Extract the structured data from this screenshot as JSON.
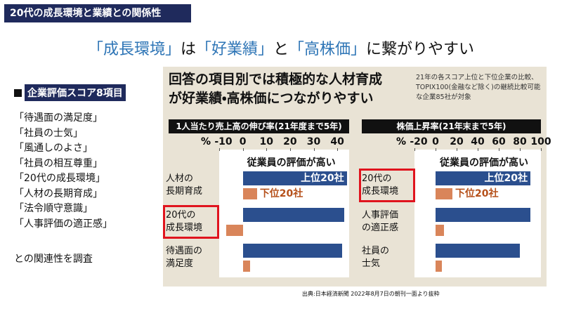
{
  "header": {
    "title": "20代の成長環境と業績との関係性"
  },
  "headline": [
    {
      "text": "「成長環境」",
      "color": "#2e75b6"
    },
    {
      "text": "は"
    },
    {
      "text": "「好業績」",
      "color": "#2e75b6"
    },
    {
      "text": "と"
    },
    {
      "text": "「高株価」",
      "color": "#2e75b6"
    },
    {
      "text": "に繋がりやすい"
    }
  ],
  "sidebar": {
    "heading": "企業評価スコア8項目",
    "items": [
      "「待遇面の満足度」",
      "「社員の士気」",
      "「風通しのよさ」",
      "「社員の相互尊重」",
      "「20代の成長環境」",
      "「人材の長期育成」",
      "「法令順守意識」",
      "「人事評価の適正感」"
    ],
    "footer": "との関連性を調査"
  },
  "panel": {
    "title_lines": [
      "回答の項目別では積極的な人材育成",
      "が好業績・高株価につながりやすい"
    ],
    "note": "21年の各スコア上位と下位企業の比較、TOPIX100(金融など除く)の継続比較可能な企業85社が対象"
  },
  "chart_data": [
    {
      "type": "bar",
      "orientation": "horizontal",
      "title": "1人当たり売上高の伸び率(21年度まで5年)",
      "unit": "%",
      "legend_title": "従業員の評価が高い",
      "categories": [
        "人材の\n長期育成",
        "20代の\n成長環境",
        "待遇面の\n満足度"
      ],
      "highlight": 1,
      "series": [
        {
          "name": "上位20社",
          "color": "#2b4f8e",
          "values": [
            44,
            43,
            42
          ]
        },
        {
          "name": "下位20社",
          "color": "#d9855a",
          "values": [
            6,
            -7,
            3
          ]
        }
      ],
      "xlim": [
        -10,
        45
      ],
      "xticks": [
        -10,
        0,
        10,
        20,
        30,
        40
      ]
    },
    {
      "type": "bar",
      "orientation": "horizontal",
      "title": "株価上昇率(21年末まで5年)",
      "unit": "%",
      "legend_title": "従業員の評価が高い",
      "categories": [
        "20代の\n成長環境",
        "人事評価\nの適正感",
        "社員の\n士気"
      ],
      "highlight": 0,
      "series": [
        {
          "name": "上位20社",
          "color": "#2b4f8e",
          "values": [
            90,
            90,
            80
          ]
        },
        {
          "name": "下位20社",
          "color": "#d9855a",
          "values": [
            16,
            8,
            6
          ]
        }
      ],
      "xlim": [
        -20,
        100
      ],
      "xticks": [
        -20,
        0,
        20,
        40,
        60,
        80,
        100
      ]
    }
  ],
  "source": "出典:日本経済新聞 2022年8月7日の朝刊一面より抜粋"
}
